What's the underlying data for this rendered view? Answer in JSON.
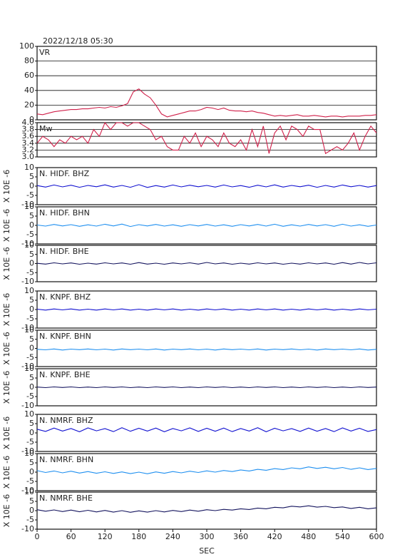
{
  "header": {
    "title": "2022/12/18 05:30"
  },
  "chart_data": [
    {
      "type": "line",
      "title": "VR",
      "color": "#d0204a",
      "xlim": [
        0,
        600
      ],
      "ylim": [
        0,
        100
      ],
      "yticks": [
        0,
        20,
        40,
        60,
        80,
        100
      ],
      "grid": true,
      "x": [
        0,
        10,
        20,
        30,
        40,
        50,
        60,
        70,
        80,
        90,
        100,
        110,
        120,
        130,
        140,
        150,
        160,
        170,
        180,
        190,
        200,
        210,
        220,
        230,
        240,
        250,
        260,
        270,
        280,
        290,
        300,
        310,
        320,
        330,
        340,
        350,
        360,
        370,
        380,
        390,
        400,
        410,
        420,
        430,
        440,
        450,
        460,
        470,
        480,
        490,
        500,
        510,
        520,
        530,
        540,
        550,
        560,
        570,
        580,
        590,
        600
      ],
      "values": [
        8,
        7,
        9,
        11,
        12,
        13,
        14,
        14,
        15,
        15,
        16,
        17,
        16,
        18,
        17,
        19,
        22,
        38,
        42,
        35,
        30,
        20,
        8,
        4,
        6,
        8,
        10,
        12,
        12,
        14,
        17,
        16,
        14,
        16,
        13,
        12,
        12,
        11,
        12,
        10,
        9,
        7,
        5,
        6,
        5,
        6,
        7,
        5,
        5,
        6,
        5,
        4,
        5,
        5,
        4,
        5,
        5,
        5,
        6,
        6,
        7
      ]
    },
    {
      "type": "line",
      "title": "Mw",
      "color": "#d0204a",
      "xlim": [
        0,
        600
      ],
      "ylim": [
        3.0,
        4.0
      ],
      "yticks": [
        {
          "value": 3.0,
          "label": "3.0"
        },
        3.2,
        3.4,
        3.6,
        3.8,
        {
          "value": 4.0,
          "label": "4.0"
        }
      ],
      "grid": true,
      "x": [
        0,
        10,
        20,
        30,
        40,
        50,
        60,
        70,
        80,
        90,
        100,
        110,
        120,
        130,
        140,
        150,
        160,
        170,
        180,
        190,
        200,
        210,
        220,
        230,
        240,
        250,
        260,
        270,
        280,
        290,
        300,
        310,
        320,
        330,
        340,
        350,
        360,
        370,
        380,
        390,
        400,
        410,
        420,
        430,
        440,
        450,
        460,
        470,
        480,
        490,
        500,
        510,
        520,
        530,
        540,
        550,
        560,
        570,
        580,
        590,
        600
      ],
      "values": [
        3.4,
        3.6,
        3.5,
        3.3,
        3.5,
        3.4,
        3.6,
        3.5,
        3.6,
        3.4,
        3.8,
        3.6,
        4.0,
        3.8,
        4.0,
        4.0,
        3.9,
        4.0,
        4.0,
        3.9,
        3.8,
        3.5,
        3.6,
        3.3,
        3.2,
        3.2,
        3.6,
        3.4,
        3.7,
        3.3,
        3.6,
        3.5,
        3.3,
        3.7,
        3.4,
        3.3,
        3.5,
        3.2,
        3.8,
        3.3,
        3.9,
        3.1,
        3.7,
        3.9,
        3.5,
        3.9,
        3.8,
        3.6,
        3.9,
        3.8,
        3.8,
        3.1,
        3.2,
        3.3,
        3.2,
        3.4,
        3.7,
        3.2,
        3.6,
        3.9,
        3.7
      ]
    },
    {
      "type": "line",
      "title": "N. HIDF. BHZ",
      "ylabel": "X 10E -6",
      "color": "#1010d0",
      "xlim": [
        0,
        600
      ],
      "ylim": [
        -10,
        10
      ],
      "yticks": [
        -10,
        -5,
        0,
        5,
        10
      ],
      "x": [
        0,
        15,
        30,
        45,
        60,
        75,
        90,
        105,
        120,
        135,
        150,
        165,
        180,
        195,
        210,
        225,
        240,
        255,
        270,
        285,
        300,
        315,
        330,
        345,
        360,
        375,
        390,
        405,
        420,
        435,
        450,
        465,
        480,
        495,
        510,
        525,
        540,
        555,
        570,
        585,
        600
      ],
      "values": [
        0.3,
        -0.5,
        0.6,
        -0.4,
        0.5,
        -0.6,
        0.4,
        -0.3,
        0.7,
        -0.5,
        0.4,
        -0.6,
        0.8,
        -0.7,
        0.3,
        -0.5,
        0.6,
        -0.4,
        0.5,
        -0.3,
        0.4,
        -0.5,
        0.6,
        -0.4,
        0.3,
        -0.6,
        0.5,
        -0.4,
        0.7,
        -0.5,
        0.4,
        -0.3,
        0.5,
        -0.6,
        0.4,
        -0.5,
        0.6,
        -0.3,
        0.4,
        -0.5,
        0.3
      ]
    },
    {
      "type": "line",
      "title": "N. HIDF. BHN",
      "ylabel": "X 10E -6",
      "color": "#1e8ff0",
      "xlim": [
        0,
        600
      ],
      "ylim": [
        -10,
        10
      ],
      "yticks": [
        -10,
        -5,
        0,
        5,
        10
      ],
      "x": [
        0,
        15,
        30,
        45,
        60,
        75,
        90,
        105,
        120,
        135,
        150,
        165,
        180,
        195,
        210,
        225,
        240,
        255,
        270,
        285,
        300,
        315,
        330,
        345,
        360,
        375,
        390,
        405,
        420,
        435,
        450,
        465,
        480,
        495,
        510,
        525,
        540,
        555,
        570,
        585,
        600
      ],
      "values": [
        0.2,
        -0.4,
        0.5,
        -0.3,
        0.4,
        -0.5,
        0.3,
        -0.4,
        0.6,
        -0.3,
        0.7,
        -0.6,
        0.4,
        -0.3,
        0.5,
        -0.4,
        0.3,
        -0.5,
        0.4,
        -0.3,
        0.5,
        -0.4,
        0.3,
        -0.5,
        0.4,
        -0.3,
        0.5,
        -0.4,
        0.6,
        -0.5,
        0.3,
        -0.4,
        0.5,
        -0.3,
        0.4,
        -0.5,
        0.6,
        -0.4,
        0.3,
        -0.5,
        0.2
      ]
    },
    {
      "type": "line",
      "title": "N. HIDF. BHE",
      "ylabel": "X 10E -6",
      "color": "#14145e",
      "xlim": [
        0,
        600
      ],
      "ylim": [
        -10,
        10
      ],
      "yticks": [
        -10,
        -5,
        0,
        5,
        10
      ],
      "x": [
        0,
        15,
        30,
        45,
        60,
        75,
        90,
        105,
        120,
        135,
        150,
        165,
        180,
        195,
        210,
        225,
        240,
        255,
        270,
        285,
        300,
        315,
        330,
        345,
        360,
        375,
        390,
        405,
        420,
        435,
        450,
        465,
        480,
        495,
        510,
        525,
        540,
        555,
        570,
        585,
        600
      ],
      "values": [
        0.1,
        -0.3,
        0.4,
        -0.2,
        0.3,
        -0.4,
        0.2,
        -0.3,
        0.4,
        -0.2,
        0.3,
        -0.4,
        0.5,
        -0.3,
        0.2,
        -0.4,
        0.3,
        -0.2,
        0.4,
        -0.3,
        0.6,
        -0.2,
        0.3,
        -0.4,
        0.2,
        -0.3,
        0.4,
        -0.2,
        0.3,
        -0.4,
        0.2,
        -0.3,
        0.4,
        -0.2,
        0.3,
        -0.4,
        0.5,
        -0.3,
        0.6,
        -0.2,
        0.4
      ]
    },
    {
      "type": "line",
      "title": "N. KNPF. BHZ",
      "ylabel": "X 10E -6",
      "color": "#1010d0",
      "xlim": [
        0,
        600
      ],
      "ylim": [
        -10,
        10
      ],
      "yticks": [
        -10,
        -5,
        0,
        5,
        10
      ],
      "x": [
        0,
        15,
        30,
        45,
        60,
        75,
        90,
        105,
        120,
        135,
        150,
        165,
        180,
        195,
        210,
        225,
        240,
        255,
        270,
        285,
        300,
        315,
        330,
        345,
        360,
        375,
        390,
        405,
        420,
        435,
        450,
        465,
        480,
        495,
        510,
        525,
        540,
        555,
        570,
        585,
        600
      ],
      "values": [
        0.2,
        -0.3,
        0.3,
        -0.2,
        0.3,
        -0.3,
        0.2,
        -0.3,
        0.3,
        -0.2,
        0.3,
        -0.3,
        0.2,
        -0.3,
        0.3,
        -0.2,
        0.3,
        -0.3,
        0.2,
        -0.3,
        0.3,
        -0.2,
        0.3,
        -0.3,
        0.2,
        -0.3,
        0.3,
        -0.2,
        0.3,
        -0.3,
        0.2,
        -0.3,
        0.3,
        -0.2,
        0.3,
        -0.3,
        0.2,
        -0.3,
        0.3,
        -0.2,
        0.2
      ]
    },
    {
      "type": "line",
      "title": "N. KNPF. BHN",
      "ylabel": "X 10E -6",
      "color": "#1e8ff0",
      "xlim": [
        0,
        600
      ],
      "ylim": [
        -10,
        10
      ],
      "yticks": [
        -10,
        -5,
        0,
        5,
        10
      ],
      "x": [
        0,
        15,
        30,
        45,
        60,
        75,
        90,
        105,
        120,
        135,
        150,
        165,
        180,
        195,
        210,
        225,
        240,
        255,
        270,
        285,
        300,
        315,
        330,
        345,
        360,
        375,
        390,
        405,
        420,
        435,
        450,
        465,
        480,
        495,
        510,
        525,
        540,
        555,
        570,
        585,
        600
      ],
      "values": [
        -0.5,
        -0.8,
        -0.3,
        -0.9,
        -0.4,
        -0.7,
        -0.3,
        -0.8,
        -0.4,
        -0.9,
        -0.3,
        -0.7,
        -0.4,
        -0.8,
        -0.3,
        -0.9,
        -0.4,
        -0.7,
        -0.3,
        -0.8,
        -0.4,
        -0.9,
        -0.3,
        -0.7,
        -0.4,
        -0.8,
        -0.3,
        -0.9,
        -0.4,
        -0.7,
        -0.3,
        -0.8,
        -0.4,
        -0.9,
        -0.3,
        -0.7,
        -0.4,
        -0.8,
        -0.3,
        -0.9,
        -0.5
      ]
    },
    {
      "type": "line",
      "title": "N. KNPF. BHE",
      "ylabel": "X 10E -6",
      "color": "#14145e",
      "xlim": [
        0,
        600
      ],
      "ylim": [
        -10,
        10
      ],
      "yticks": [
        -10,
        -5,
        0,
        5,
        10
      ],
      "x": [
        0,
        15,
        30,
        45,
        60,
        75,
        90,
        105,
        120,
        135,
        150,
        165,
        180,
        195,
        210,
        225,
        240,
        255,
        270,
        285,
        300,
        315,
        330,
        345,
        360,
        375,
        390,
        405,
        420,
        435,
        450,
        465,
        480,
        495,
        510,
        525,
        540,
        555,
        570,
        585,
        600
      ],
      "values": [
        0.1,
        -0.2,
        0.2,
        -0.1,
        0.2,
        -0.2,
        0.1,
        -0.2,
        0.2,
        -0.1,
        0.2,
        -0.2,
        0.1,
        -0.2,
        0.2,
        -0.1,
        0.2,
        -0.2,
        0.1,
        -0.2,
        0.2,
        -0.1,
        0.2,
        -0.2,
        0.1,
        -0.2,
        0.2,
        -0.1,
        0.2,
        -0.2,
        0.1,
        -0.2,
        0.2,
        -0.1,
        0.2,
        -0.2,
        0.1,
        -0.2,
        0.2,
        -0.1,
        0.1
      ]
    },
    {
      "type": "line",
      "title": "N. NMRF. BHZ",
      "ylabel": "X 10E -6",
      "color": "#1010d0",
      "xlim": [
        0,
        600
      ],
      "ylim": [
        -10,
        10
      ],
      "yticks": [
        -10,
        -5,
        0,
        5,
        10
      ],
      "x": [
        0,
        15,
        30,
        45,
        60,
        75,
        90,
        105,
        120,
        135,
        150,
        165,
        180,
        195,
        210,
        225,
        240,
        255,
        270,
        285,
        300,
        315,
        330,
        345,
        360,
        375,
        390,
        405,
        420,
        435,
        450,
        465,
        480,
        495,
        510,
        525,
        540,
        555,
        570,
        585,
        600
      ],
      "values": [
        2.0,
        0.8,
        2.6,
        1.0,
        2.4,
        0.6,
        2.7,
        1.1,
        2.3,
        0.7,
        2.8,
        0.9,
        2.5,
        1.0,
        2.6,
        0.6,
        2.4,
        1.1,
        2.7,
        0.8,
        2.5,
        0.9,
        2.6,
        0.7,
        2.4,
        1.0,
        2.8,
        0.6,
        2.5,
        1.1,
        2.3,
        0.8,
        2.6,
        0.9,
        2.4,
        0.7,
        2.7,
        1.0,
        2.5,
        0.8,
        1.8
      ]
    },
    {
      "type": "line",
      "title": "N. NMRF. BHN",
      "ylabel": "X 10E -6",
      "color": "#1e8ff0",
      "xlim": [
        0,
        600
      ],
      "ylim": [
        -10,
        10
      ],
      "yticks": [
        -10,
        -5,
        0,
        5,
        10
      ],
      "x": [
        0,
        15,
        30,
        45,
        60,
        75,
        90,
        105,
        120,
        135,
        150,
        165,
        180,
        195,
        210,
        225,
        240,
        255,
        270,
        285,
        300,
        315,
        330,
        345,
        360,
        375,
        390,
        405,
        420,
        435,
        450,
        465,
        480,
        495,
        510,
        525,
        540,
        555,
        570,
        585,
        600
      ],
      "values": [
        0.8,
        -0.2,
        0.6,
        -0.4,
        0.5,
        -0.5,
        0.3,
        -0.6,
        0.2,
        -0.7,
        0.1,
        -0.8,
        0.0,
        -0.9,
        0.1,
        -0.6,
        0.3,
        -0.4,
        0.5,
        -0.2,
        0.7,
        0.0,
        0.9,
        0.3,
        1.2,
        0.6,
        1.5,
        1.0,
        1.9,
        1.4,
        2.3,
        1.8,
        2.8,
        2.0,
        2.6,
        1.8,
        2.5,
        1.5,
        2.3,
        1.4,
        2.0
      ]
    },
    {
      "type": "line",
      "title": "N. NMRF. BHE",
      "ylabel": "X 10E -6",
      "color": "#14145e",
      "xlim": [
        0,
        600
      ],
      "ylim": [
        -10,
        10
      ],
      "yticks": [
        -10,
        -5,
        0,
        5,
        10
      ],
      "x": [
        0,
        15,
        30,
        45,
        60,
        75,
        90,
        105,
        120,
        135,
        150,
        165,
        180,
        195,
        210,
        225,
        240,
        255,
        270,
        285,
        300,
        315,
        330,
        345,
        360,
        375,
        390,
        405,
        420,
        435,
        450,
        465,
        480,
        495,
        510,
        525,
        540,
        555,
        570,
        585,
        600
      ],
      "values": [
        0.5,
        -0.3,
        0.4,
        -0.5,
        0.3,
        -0.6,
        0.2,
        -0.7,
        0.1,
        -0.8,
        0.0,
        -0.9,
        -0.1,
        -0.8,
        0.0,
        -0.7,
        0.1,
        -0.5,
        0.3,
        -0.3,
        0.5,
        0.0,
        0.7,
        0.3,
        1.0,
        0.6,
        1.4,
        1.0,
        1.8,
        1.5,
        2.4,
        2.0,
        2.6,
        1.9,
        2.3,
        1.6,
        2.0,
        1.2,
        1.8,
        1.0,
        1.5
      ],
      "xticks": [
        0,
        60,
        120,
        180,
        240,
        300,
        360,
        420,
        480,
        540,
        600
      ],
      "xlabel": "SEC"
    }
  ]
}
